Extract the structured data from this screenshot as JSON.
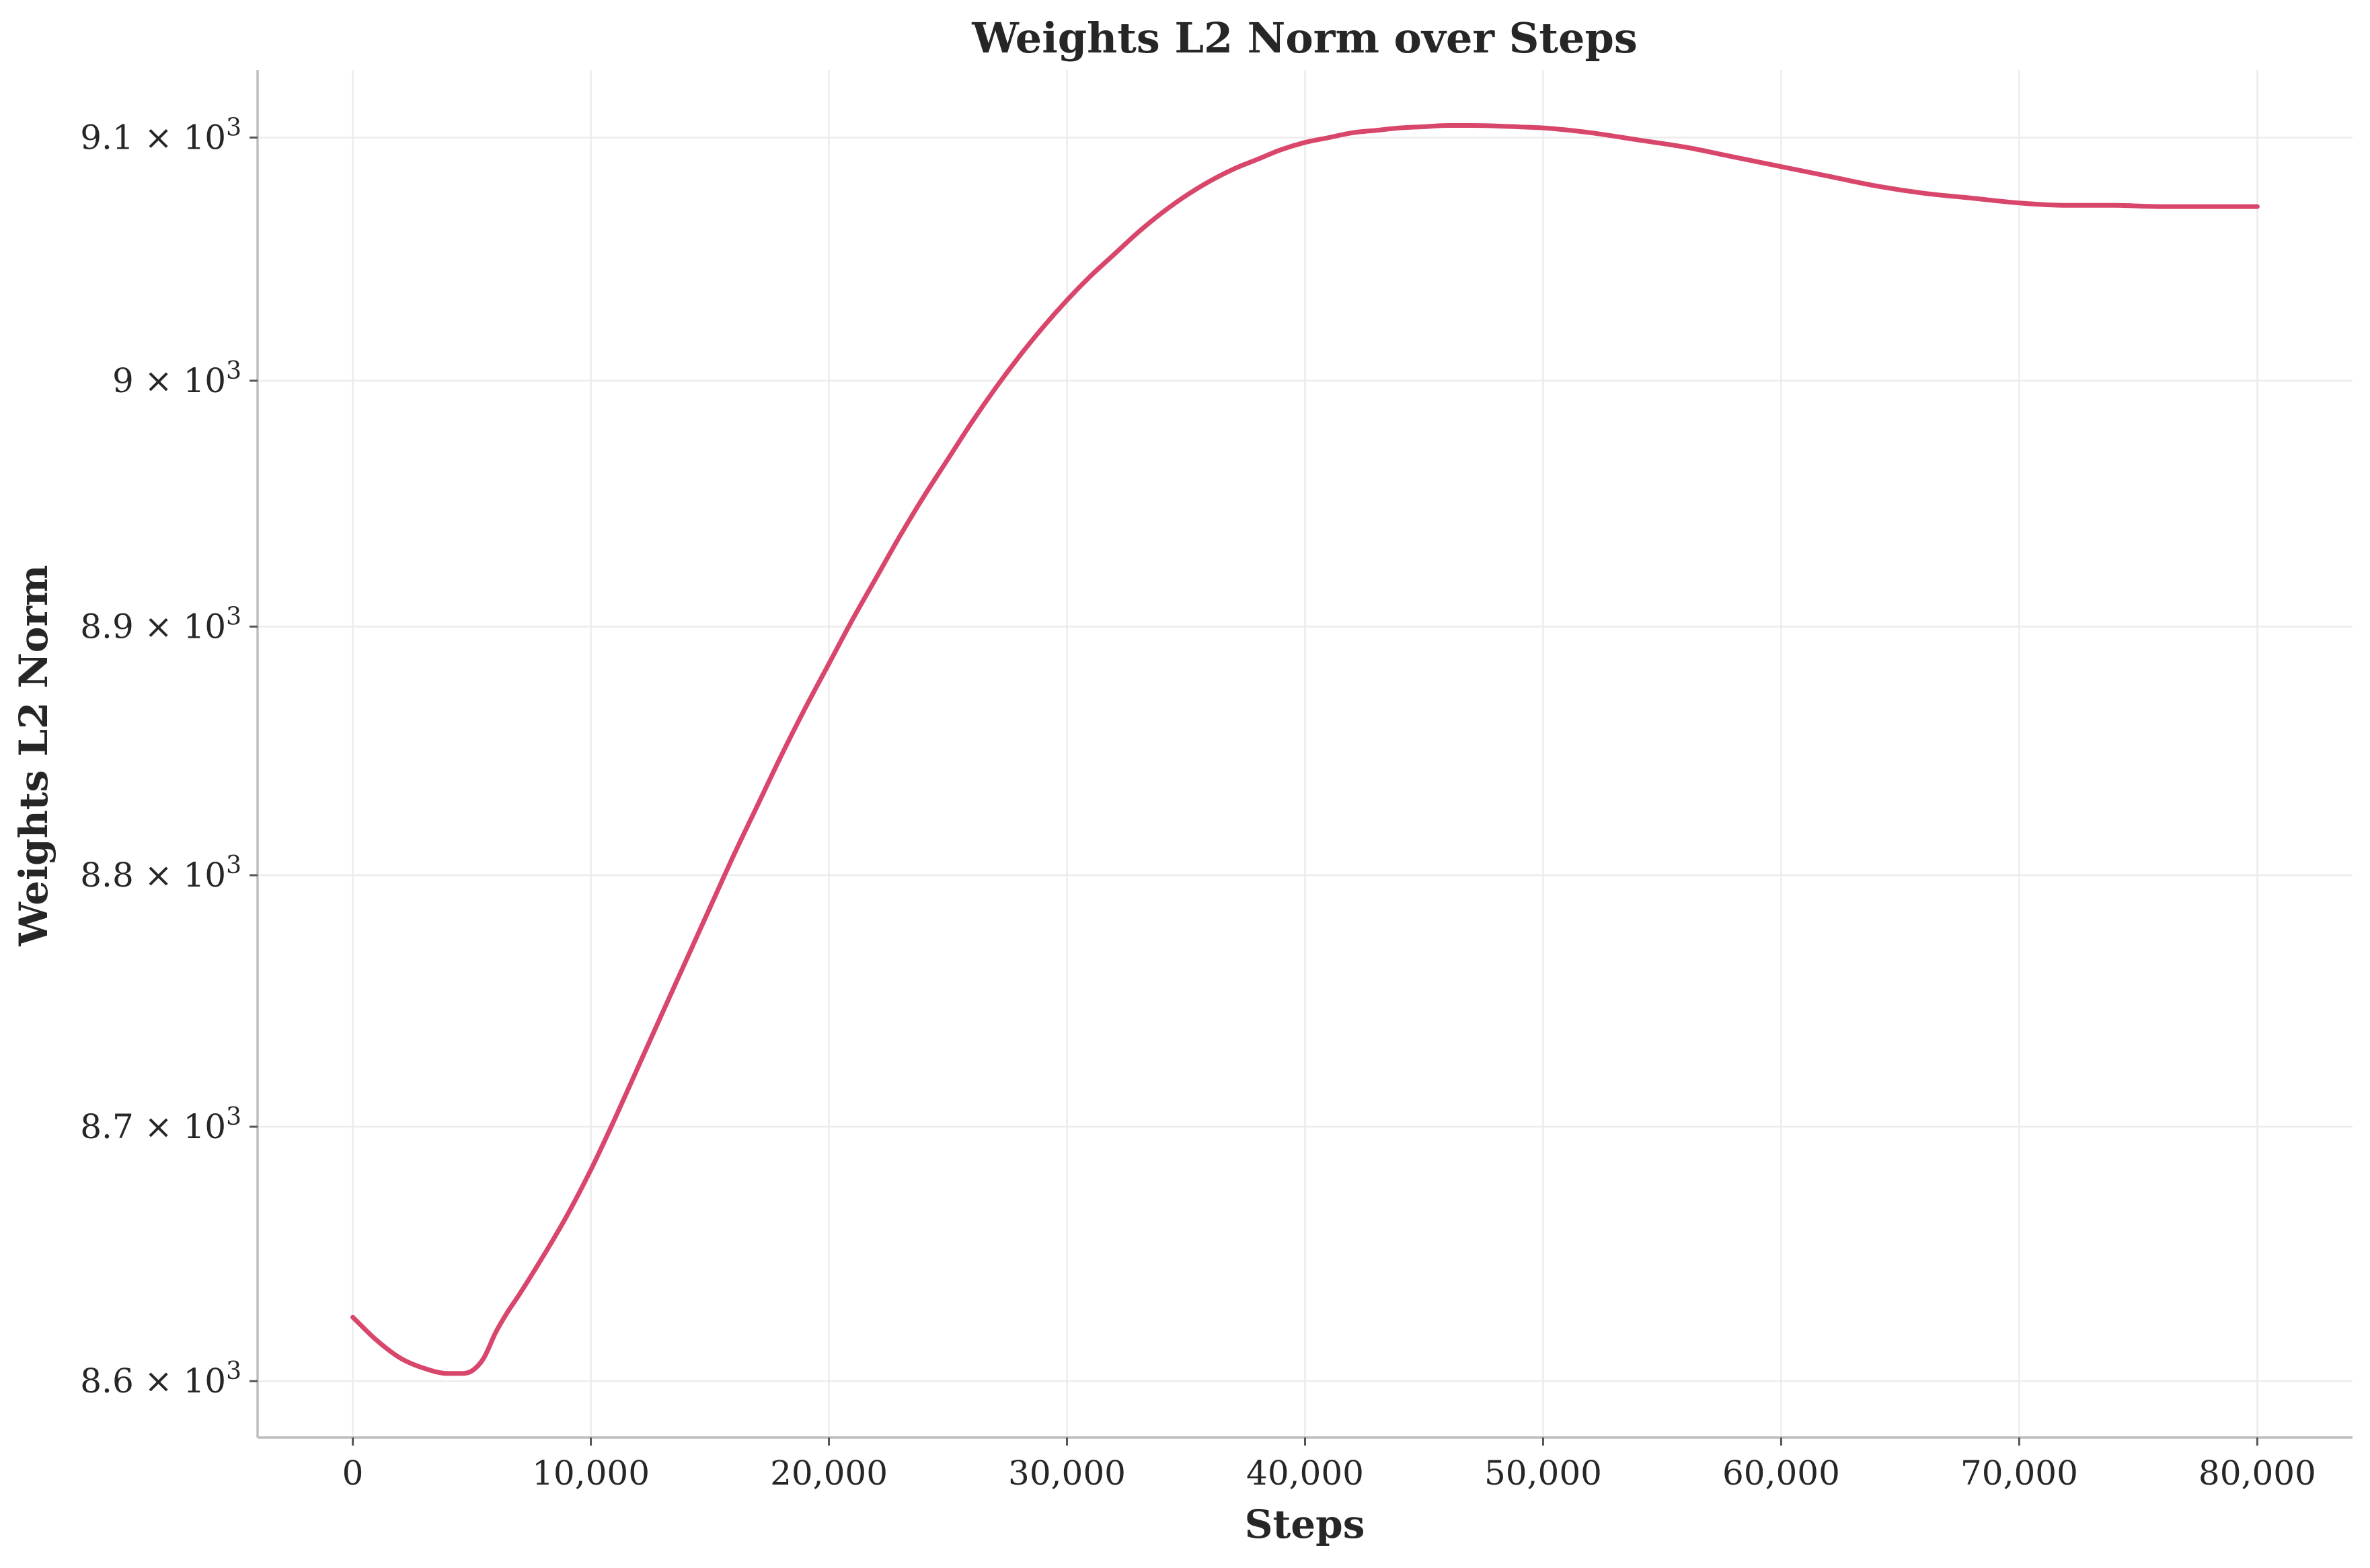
{
  "chart_data": {
    "type": "line",
    "title": "Weights L2 Norm over Steps",
    "xlabel": "Steps",
    "ylabel": "Weights L2 Norm",
    "xlim": [
      -4000,
      84000
    ],
    "ylim": [
      8578,
      9128
    ],
    "yscale": "log",
    "grid": true,
    "x_ticks": [
      {
        "value": 0,
        "label": "0"
      },
      {
        "value": 10000,
        "label": "10,000"
      },
      {
        "value": 20000,
        "label": "20,000"
      },
      {
        "value": 30000,
        "label": "30,000"
      },
      {
        "value": 40000,
        "label": "40,000"
      },
      {
        "value": 50000,
        "label": "50,000"
      },
      {
        "value": 60000,
        "label": "60,000"
      },
      {
        "value": 70000,
        "label": "70,000"
      },
      {
        "value": 80000,
        "label": "80,000"
      }
    ],
    "y_ticks": [
      {
        "value": 8600,
        "mantissa": "8.6",
        "base": "10",
        "exponent": "3"
      },
      {
        "value": 8700,
        "mantissa": "8.7",
        "base": "10",
        "exponent": "3"
      },
      {
        "value": 8800,
        "mantissa": "8.8",
        "base": "10",
        "exponent": "3"
      },
      {
        "value": 8900,
        "mantissa": "8.9",
        "base": "10",
        "exponent": "3"
      },
      {
        "value": 9000,
        "mantissa": "9",
        "base": "10",
        "exponent": "3"
      },
      {
        "value": 9100,
        "mantissa": "9.1",
        "base": "10",
        "exponent": "3"
      }
    ],
    "series": [
      {
        "color": "#d9466b",
        "x": [
          0,
          1000,
          2000,
          3000,
          4000,
          4500,
          5000,
          5500,
          6000,
          6500,
          7000,
          8000,
          9000,
          10000,
          11000,
          12000,
          13000,
          14000,
          15000,
          16000,
          17000,
          18000,
          19000,
          20000,
          21000,
          22000,
          23000,
          24000,
          25000,
          26000,
          27000,
          28000,
          29000,
          30000,
          31000,
          32000,
          33000,
          34000,
          35000,
          36000,
          37000,
          38000,
          39000,
          40000,
          41000,
          42000,
          43000,
          44000,
          45000,
          46000,
          47000,
          48000,
          49000,
          50000,
          52000,
          54000,
          56000,
          58000,
          60000,
          62000,
          64000,
          66000,
          68000,
          70000,
          72000,
          74000,
          76000,
          78000,
          80000
        ],
        "y": [
          8625,
          8616,
          8609,
          8605,
          8603,
          8603,
          8604,
          8609,
          8619,
          8627,
          8634,
          8649,
          8665,
          8683,
          8703,
          8724,
          8745,
          8766,
          8787,
          8808,
          8828,
          8848,
          8867,
          8885,
          8903,
          8920,
          8937,
          8953,
          8968,
          8983,
          8997,
          9010,
          9022,
          9033,
          9043,
          9052,
          9061,
          9069,
          9076,
          9082,
          9087,
          9091,
          9095,
          9098,
          9100,
          9102,
          9103,
          9104,
          9104.5,
          9105,
          9105,
          9104.8,
          9104.4,
          9104,
          9102,
          9099,
          9096,
          9092,
          9088,
          9084,
          9080,
          9077,
          9075,
          9073,
          9072,
          9072,
          9071.5,
          9071.5,
          9071.5
        ]
      }
    ]
  }
}
